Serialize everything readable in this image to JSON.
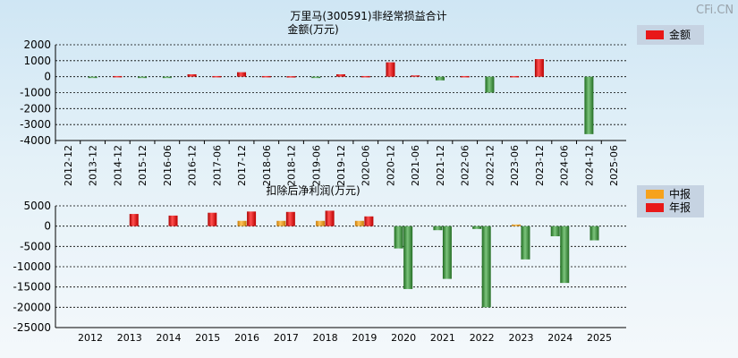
{
  "watermark": "CFi.CN",
  "colors": {
    "annual": "#e81818",
    "interim": "#f6a21c",
    "negative": "#3a8f3a",
    "grid": "#000000",
    "legend_bg": "#c6d3e2"
  },
  "chart_data": [
    {
      "type": "bar",
      "title": "万里马(300591)非经常损益合计",
      "subtitle": "金额(万元)",
      "ylim": [
        -4000,
        2000
      ],
      "yticks": [
        2000,
        1000,
        0,
        -1000,
        -2000,
        -3000,
        -4000
      ],
      "grid": true,
      "legend_position": "top-right",
      "categories": [
        "2012-12",
        "2013-12",
        "2014-12",
        "2015-12",
        "2016-06",
        "2016-12",
        "2017-06",
        "2017-12",
        "2018-06",
        "2018-12",
        "2019-06",
        "2019-12",
        "2020-06",
        "2020-12",
        "2021-06",
        "2021-12",
        "2022-06",
        "2022-12",
        "2023-06",
        "2023-12",
        "2024-06",
        "2024-12",
        "2025-06"
      ],
      "series": [
        {
          "name": "金额",
          "values": [
            0,
            -30,
            40,
            -20,
            -20,
            150,
            40,
            280,
            40,
            30,
            -30,
            150,
            40,
            900,
            80,
            -230,
            40,
            -1000,
            40,
            1100,
            0,
            -3600,
            0
          ]
        }
      ]
    },
    {
      "type": "bar",
      "title": "扣除后净利润(万元)",
      "ylim": [
        -25000,
        5000
      ],
      "yticks": [
        5000,
        0,
        -5000,
        -10000,
        -15000,
        -20000,
        -25000
      ],
      "grid": true,
      "legend_position": "top-right",
      "categories": [
        "2012",
        "2013",
        "2014",
        "2015",
        "2016",
        "2017",
        "2018",
        "2019",
        "2020",
        "2021",
        "2022",
        "2023",
        "2024",
        "2025"
      ],
      "series": [
        {
          "name": "中报",
          "values": [
            null,
            null,
            null,
            null,
            1300,
            1300,
            1300,
            1300,
            -5500,
            -1000,
            -700,
            400,
            -2500,
            -3500
          ]
        },
        {
          "name": "年报",
          "values": [
            null,
            3000,
            2600,
            3300,
            3600,
            3500,
            3800,
            2400,
            -15500,
            -13000,
            -20000,
            -8200,
            -14000,
            null
          ]
        }
      ]
    }
  ]
}
